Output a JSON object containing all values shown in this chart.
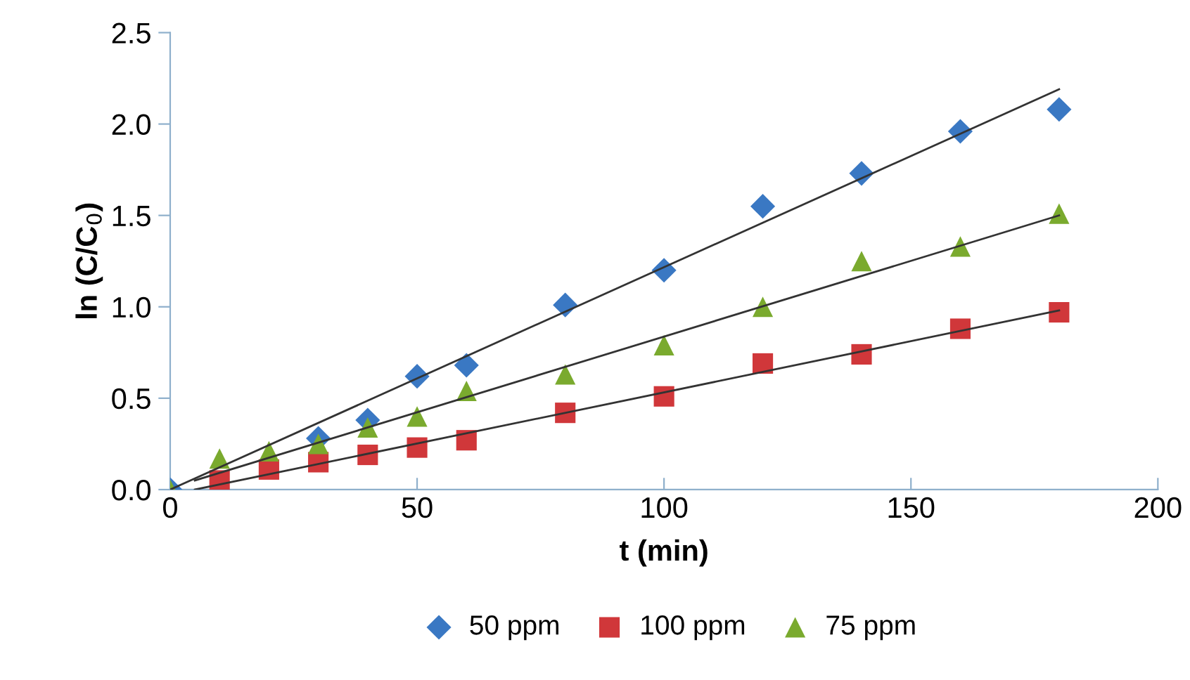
{
  "chart_data": {
    "type": "scatter",
    "xlabel": "t (min)",
    "ylabel": "ln (C/C$_{0}$)",
    "xlim": [
      0,
      200
    ],
    "ylim": [
      0,
      2.5
    ],
    "xticks": [
      0,
      50,
      100,
      150,
      200
    ],
    "yticks": [
      {
        "value": 0,
        "label": "0.0"
      },
      {
        "value": 0.5,
        "label": "0.5"
      },
      {
        "value": 1,
        "label": "1.0"
      },
      {
        "value": 1.5,
        "label": "1.5"
      },
      {
        "value": 2,
        "label": "2.0"
      },
      {
        "value": 2.5,
        "label": "2.5"
      }
    ],
    "grid": false,
    "legend": "bottom",
    "series": [
      {
        "name": "50 ppm",
        "marker": "diamond",
        "color": "#3a78c3",
        "x": [
          0,
          30,
          40,
          50,
          60,
          80,
          100,
          120,
          140,
          160,
          180
        ],
        "values": [
          0,
          0.28,
          0.38,
          0.62,
          0.68,
          1.01,
          1.2,
          1.55,
          1.73,
          1.96,
          2.08
        ]
      },
      {
        "name": "100 ppm",
        "marker": "square",
        "color": "#d0373a",
        "x": [
          10,
          20,
          30,
          40,
          50,
          60,
          80,
          100,
          120,
          140,
          160,
          180
        ],
        "values": [
          0.05,
          0.11,
          0.15,
          0.19,
          0.23,
          0.27,
          0.42,
          0.51,
          0.69,
          0.74,
          0.88,
          0.97
        ]
      },
      {
        "name": "75 ppm",
        "marker": "triangle",
        "color": "#7aaa2e",
        "x": [
          0,
          10,
          20,
          30,
          40,
          50,
          60,
          80,
          100,
          120,
          140,
          160,
          180
        ],
        "values": [
          0,
          0.17,
          0.21,
          0.25,
          0.34,
          0.4,
          0.54,
          0.63,
          0.79,
          1.0,
          1.25,
          1.33,
          1.51
        ]
      },
      {
        "type": "line",
        "color": "#333333",
        "x": [
          0,
          180
        ],
        "values": [
          0.0,
          2.19
        ]
      },
      {
        "type": "line",
        "color": "#333333",
        "x": [
          5,
          180
        ],
        "values": [
          0.0,
          0.98
        ]
      },
      {
        "type": "line",
        "color": "#333333",
        "x": [
          5,
          180
        ],
        "values": [
          0.05,
          1.5
        ]
      }
    ]
  }
}
